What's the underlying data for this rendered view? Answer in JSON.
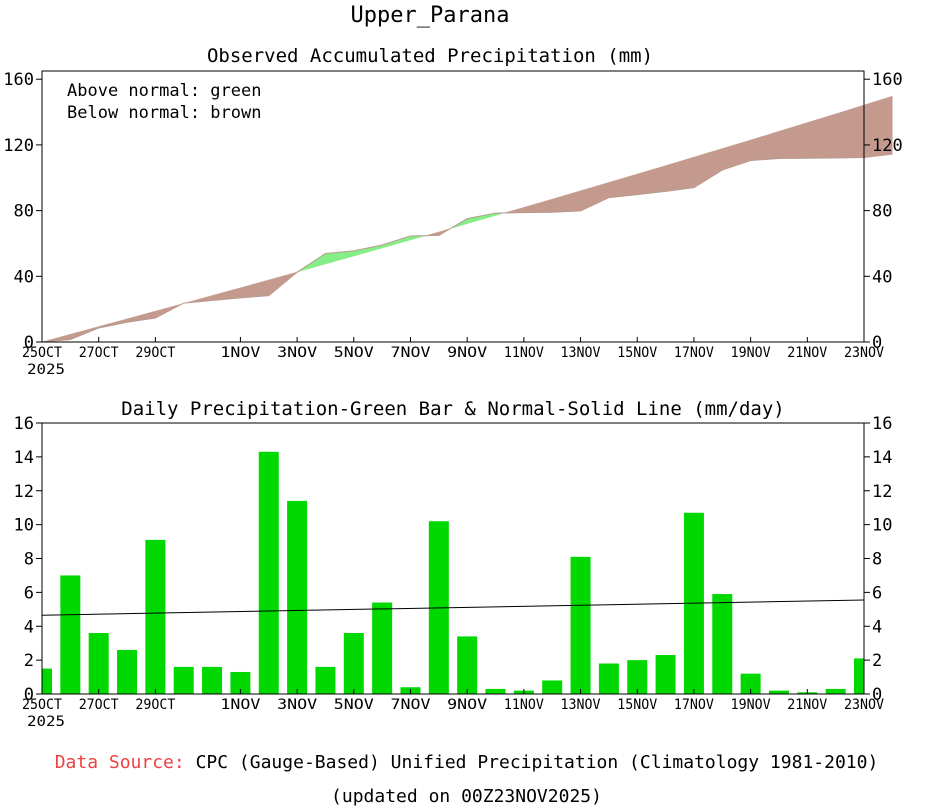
{
  "page_title": "Upper_Parana",
  "top_chart": {
    "title": "Observed Accumulated Precipitation (mm)",
    "legend_above": "Above normal: green",
    "legend_below": "Below normal: brown",
    "colors": {
      "above": "#86ee86",
      "below": "#c49a8e"
    }
  },
  "bottom_chart": {
    "title": "Daily Precipitation-Green Bar & Normal-Solid Line (mm/day)",
    "colors": {
      "bar": "#00d800",
      "line": "#000000"
    }
  },
  "chart_data": [
    {
      "type": "area",
      "title": "Observed Accumulated Precipitation (mm)",
      "xlabel": "",
      "ylabel": "mm",
      "ylim": [
        0,
        165
      ],
      "yticks": [
        0,
        40,
        80,
        120,
        160
      ],
      "xlim": [
        0,
        29
      ],
      "x_ticks": [
        {
          "day": 0,
          "label": "25OCT",
          "sublabel": "2025"
        },
        {
          "day": 2,
          "label": "27OCT"
        },
        {
          "day": 4,
          "label": "29OCT"
        },
        {
          "day": 7,
          "label": "1NOV"
        },
        {
          "day": 9,
          "label": "3NOV"
        },
        {
          "day": 11,
          "label": "5NOV"
        },
        {
          "day": 13,
          "label": "7NOV"
        },
        {
          "day": 15,
          "label": "9NOV"
        },
        {
          "day": 17,
          "label": "11NOV"
        },
        {
          "day": 19,
          "label": "13NOV"
        },
        {
          "day": 21,
          "label": "15NOV"
        },
        {
          "day": 23,
          "label": "17NOV"
        },
        {
          "day": 25,
          "label": "19NOV"
        },
        {
          "day": 27,
          "label": "21NOV"
        },
        {
          "day": 29,
          "label": "23NOV"
        }
      ],
      "series": [
        {
          "name": "Observed accumulated",
          "values": [
            0,
            1.5,
            8.5,
            12,
            14.6,
            23.7,
            25.3,
            26.9,
            28.2,
            42.5,
            53.9,
            55.5,
            59.1,
            64.5,
            64.9,
            75.1,
            78.5,
            78.8,
            79,
            79.8,
            87.9,
            89.7,
            91.7,
            94,
            104.7,
            110.5,
            111.7,
            111.9,
            112,
            112.3,
            114.4
          ]
        },
        {
          "name": "Normal accumulated",
          "values": [
            0,
            4.7,
            9.4,
            14.1,
            18.8,
            23.5,
            28.3,
            33,
            37.8,
            42.6,
            47.5,
            52.3,
            57.2,
            62.1,
            67,
            72,
            77,
            82,
            87,
            92.1,
            97.2,
            102.3,
            107.4,
            112.6,
            117.8,
            123,
            128.3,
            133.6,
            138.9,
            144.3,
            149.7
          ]
        }
      ]
    },
    {
      "type": "bar",
      "title": "Daily Precipitation-Green Bar & Normal-Solid Line (mm/day)",
      "xlabel": "",
      "ylabel": "mm/day",
      "ylim": [
        0,
        16
      ],
      "yticks": [
        0,
        2,
        4,
        6,
        8,
        10,
        12,
        14,
        16
      ],
      "categories": [
        "25OCT",
        "26OCT",
        "27OCT",
        "28OCT",
        "29OCT",
        "30OCT",
        "31OCT",
        "1NOV",
        "2NOV",
        "3NOV",
        "4NOV",
        "5NOV",
        "6NOV",
        "7NOV",
        "8NOV",
        "9NOV",
        "10NOV",
        "11NOV",
        "12NOV",
        "13NOV",
        "14NOV",
        "15NOV",
        "16NOV",
        "17NOV",
        "18NOV",
        "19NOV",
        "20NOV",
        "21NOV",
        "22NOV",
        "23NOV"
      ],
      "values": [
        1.5,
        7,
        3.6,
        2.6,
        9.1,
        1.6,
        1.6,
        1.3,
        14.3,
        11.4,
        1.6,
        3.6,
        5.4,
        0.4,
        10.2,
        3.4,
        0.3,
        0.2,
        0.8,
        8.1,
        1.8,
        2,
        2.3,
        10.7,
        5.9,
        1.2,
        0.2,
        0.1,
        0.3,
        2.1
      ],
      "normal_line": {
        "name": "Normal",
        "start": 4.65,
        "end": 5.55
      }
    }
  ],
  "footer": {
    "source_label": "Data Source:",
    "source_text": "CPC (Gauge-Based) Unified Precipitation (Climatology 1981-2010)",
    "updated": "(updated on 00Z23NOV2025)"
  }
}
